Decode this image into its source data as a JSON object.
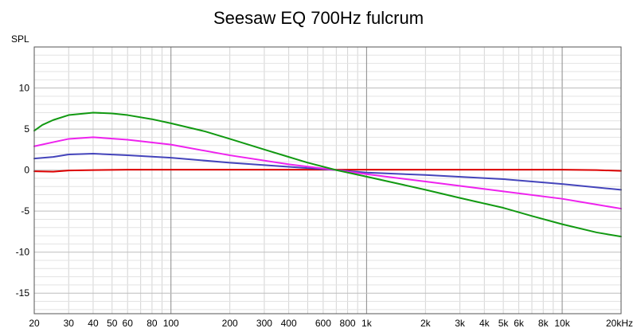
{
  "chart_data": {
    "type": "line",
    "title": "Seesaw EQ 700Hz fulcrum",
    "ylabel": "SPL",
    "xlabel": "",
    "x_scale": "log",
    "xlim": [
      20,
      20000
    ],
    "ylim": [
      -17.5,
      15
    ],
    "grid": true,
    "x_ticks": [
      {
        "v": 20,
        "label": "20"
      },
      {
        "v": 30,
        "label": "30"
      },
      {
        "v": 40,
        "label": "40"
      },
      {
        "v": 50,
        "label": "50"
      },
      {
        "v": 60,
        "label": "60"
      },
      {
        "v": 80,
        "label": "80"
      },
      {
        "v": 100,
        "label": "100"
      },
      {
        "v": 200,
        "label": "200"
      },
      {
        "v": 300,
        "label": "300"
      },
      {
        "v": 400,
        "label": "400"
      },
      {
        "v": 600,
        "label": "600"
      },
      {
        "v": 800,
        "label": "800"
      },
      {
        "v": 1000,
        "label": "1k"
      },
      {
        "v": 2000,
        "label": "2k"
      },
      {
        "v": 3000,
        "label": "3k"
      },
      {
        "v": 4000,
        "label": "4k"
      },
      {
        "v": 5000,
        "label": "5k"
      },
      {
        "v": 6000,
        "label": "6k"
      },
      {
        "v": 8000,
        "label": "8k"
      },
      {
        "v": 10000,
        "label": "10k"
      },
      {
        "v": 20000,
        "label": "20kHz"
      }
    ],
    "y_ticks": [
      {
        "v": 10,
        "label": "10"
      },
      {
        "v": 5,
        "label": "5"
      },
      {
        "v": 0,
        "label": "0"
      },
      {
        "v": -5,
        "label": "-5"
      },
      {
        "v": -10,
        "label": "-10"
      },
      {
        "v": -15,
        "label": "-15"
      }
    ],
    "series": [
      {
        "color": "#dd0000",
        "x": [
          20,
          25,
          30,
          40,
          60,
          100,
          200,
          400,
          700,
          1000,
          2000,
          5000,
          10000,
          15000,
          20000
        ],
        "y": [
          -0.15,
          -0.2,
          -0.05,
          0.0,
          0.05,
          0.05,
          0.05,
          0.05,
          0.05,
          0.05,
          0.05,
          0.05,
          0.05,
          0.0,
          -0.1
        ]
      },
      {
        "color": "#4444bb",
        "x": [
          20,
          25,
          30,
          40,
          60,
          100,
          200,
          400,
          700,
          1000,
          2000,
          5000,
          10000,
          20000
        ],
        "y": [
          1.4,
          1.6,
          1.9,
          2.0,
          1.8,
          1.5,
          0.9,
          0.4,
          0.0,
          -0.3,
          -0.6,
          -1.1,
          -1.7,
          -2.4
        ]
      },
      {
        "color": "#ee22ee",
        "x": [
          20,
          25,
          30,
          40,
          60,
          100,
          200,
          400,
          700,
          1000,
          2000,
          5000,
          10000,
          20000
        ],
        "y": [
          2.9,
          3.4,
          3.8,
          4.0,
          3.7,
          3.1,
          1.8,
          0.7,
          0.0,
          -0.5,
          -1.4,
          -2.6,
          -3.5,
          -4.7
        ]
      },
      {
        "color": "#119911",
        "x": [
          20,
          22,
          25,
          30,
          40,
          50,
          60,
          80,
          100,
          150,
          200,
          300,
          400,
          500,
          700,
          1000,
          2000,
          3000,
          5000,
          7000,
          10000,
          15000,
          20000
        ],
        "y": [
          4.8,
          5.5,
          6.1,
          6.7,
          7.0,
          6.9,
          6.7,
          6.2,
          5.7,
          4.7,
          3.8,
          2.5,
          1.6,
          0.9,
          0.0,
          -0.8,
          -2.4,
          -3.4,
          -4.6,
          -5.6,
          -6.6,
          -7.6,
          -8.1
        ]
      }
    ]
  }
}
